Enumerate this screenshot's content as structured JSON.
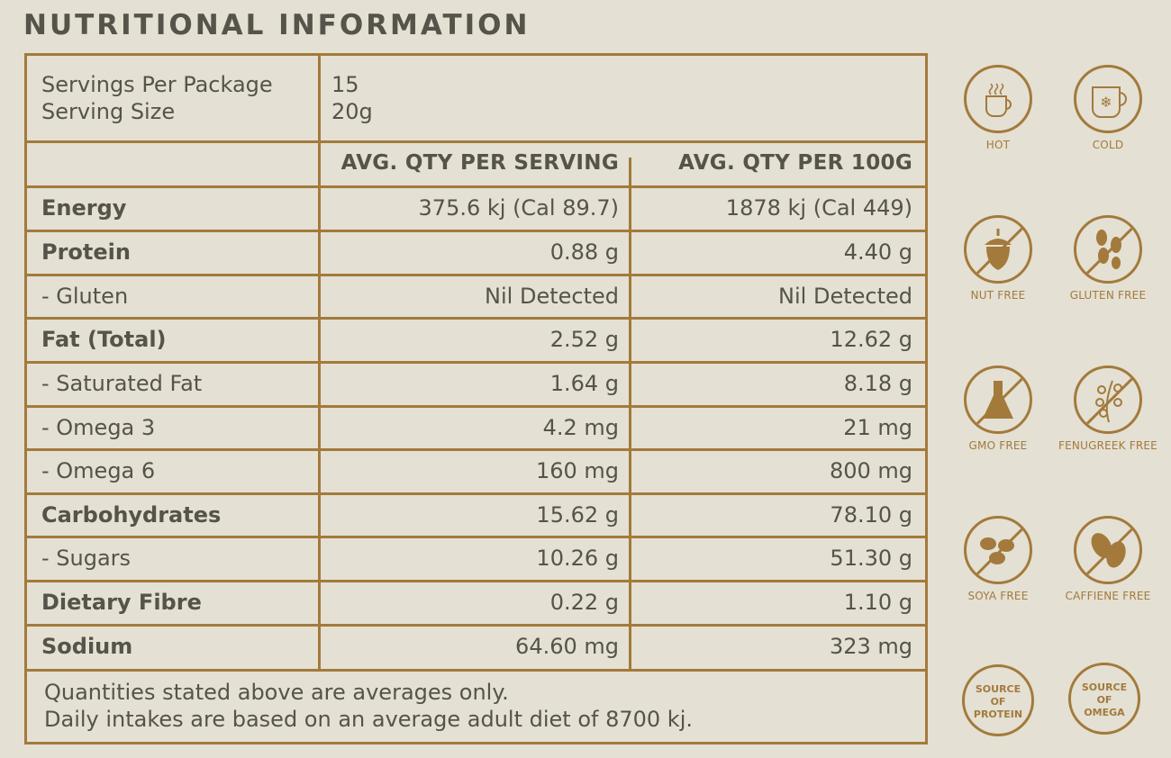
{
  "title": "NUTRITIONAL INFORMATION",
  "servings": {
    "label_1": "Servings Per Package",
    "label_2": "Serving Size",
    "value_1": "15",
    "value_2": "20g"
  },
  "headers": {
    "per_serving": "AVG. QTY PER SERVING",
    "per_100g": "AVG. QTY PER 100G"
  },
  "rows": [
    {
      "label": "Energy",
      "serving": "375.6 kj (Cal 89.7)",
      "per100": "1878 kj (Cal 449)"
    },
    {
      "label": "Protein",
      "serving": "0.88 g",
      "per100": "4.40 g"
    },
    {
      "label": "- Gluten",
      "serving": "Nil Detected",
      "per100": "Nil Detected"
    },
    {
      "label": "Fat (Total)",
      "serving": "2.52 g",
      "per100": "12.62 g"
    },
    {
      "label": "- Saturated Fat",
      "serving": "1.64 g",
      "per100": "8.18 g"
    },
    {
      "label": "- Omega 3",
      "serving": "4.2 mg",
      "per100": "21 mg"
    },
    {
      "label": "- Omega 6",
      "serving": "160 mg",
      "per100": "800 mg"
    },
    {
      "label": "Carbohydrates",
      "serving": "15.62 g",
      "per100": "78.10 g"
    },
    {
      "label": "- Sugars",
      "serving": "10.26 g",
      "per100": "51.30 g"
    },
    {
      "label": "Dietary Fibre",
      "serving": "0.22 g",
      "per100": "1.10 g"
    },
    {
      "label": "Sodium",
      "serving": "64.60 mg",
      "per100": "323 mg"
    }
  ],
  "footnote": {
    "line_1": "Quantities stated above are averages only.",
    "line_2": "Daily intakes are based on an average adult diet of 8700 kj."
  },
  "badges": [
    {
      "caption": "HOT",
      "icon": "hot-cup-icon"
    },
    {
      "caption": "COLD",
      "icon": "cold-cup-icon"
    },
    {
      "caption": "NUT FREE",
      "icon": "acorn-icon"
    },
    {
      "caption": "GLUTEN FREE",
      "icon": "wheat-icon"
    },
    {
      "caption": "GMO FREE",
      "icon": "flask-icon"
    },
    {
      "caption": "FENUGREEK FREE",
      "icon": "herb-icon"
    },
    {
      "caption": "SOYA FREE",
      "icon": "soybean-icon"
    },
    {
      "caption": "CAFFIENE FREE",
      "icon": "coffee-bean-icon"
    }
  ],
  "source_badges": [
    {
      "line_1": "SOURCE",
      "line_2": "OF",
      "line_3": "PROTEIN"
    },
    {
      "line_1": "SOURCE",
      "line_2": "OF",
      "line_3": "OMEGA"
    }
  ],
  "colors": {
    "accent": "#a37a3c",
    "background": "#e4e0d3",
    "text": "#55534a"
  }
}
